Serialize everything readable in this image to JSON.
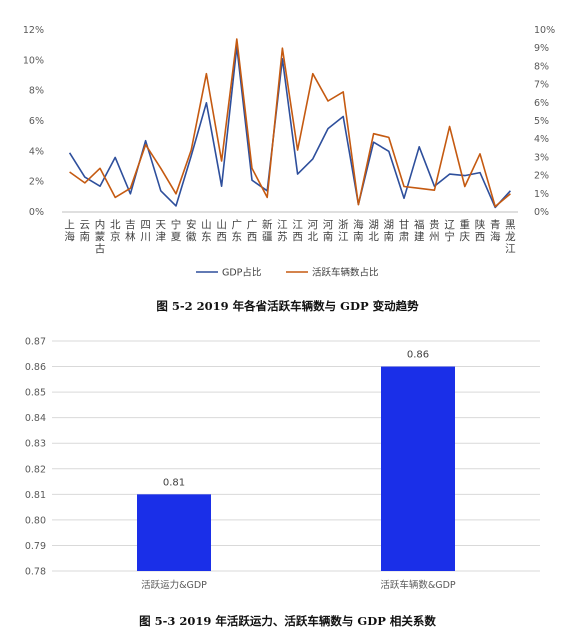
{
  "chart_data": [
    {
      "type": "line",
      "caption": "图 5-2 2019 年各省活跃车辆数与 GDP 变动趋势",
      "categories": [
        "上海",
        "云南",
        "内蒙古",
        "北京",
        "吉林",
        "四川",
        "天津",
        "宁夏",
        "安徽",
        "山东",
        "山西",
        "广东",
        "广西",
        "新疆",
        "江苏",
        "江西",
        "河北",
        "河南",
        "浙江",
        "海南",
        "湖北",
        "湖南",
        "甘肃",
        "福建",
        "贵州",
        "辽宁",
        "重庆",
        "陕西",
        "青海",
        "黑龙江"
      ],
      "series": [
        {
          "name": "GDP占比",
          "axis": "left",
          "color": "#2e4f9c",
          "values": [
            3.9,
            2.3,
            1.7,
            3.6,
            1.2,
            4.7,
            1.4,
            0.4,
            3.7,
            7.2,
            1.7,
            10.9,
            2.1,
            1.4,
            10.1,
            2.5,
            3.5,
            5.5,
            6.3,
            0.5,
            4.6,
            4.0,
            0.9,
            4.3,
            1.7,
            2.5,
            2.4,
            2.6,
            0.3,
            1.4
          ]
        },
        {
          "name": "活跃车辆数占比",
          "axis": "right",
          "color": "#c55a11",
          "values": [
            2.2,
            1.6,
            2.4,
            0.8,
            1.3,
            3.7,
            2.4,
            1.0,
            3.4,
            7.6,
            2.8,
            9.5,
            2.4,
            0.8,
            9.0,
            3.4,
            7.6,
            6.1,
            6.6,
            0.4,
            4.3,
            4.1,
            1.4,
            1.3,
            1.2,
            4.7,
            1.4,
            3.2,
            0.3,
            1.0
          ]
        }
      ],
      "y_left": {
        "ticks": [
          "0%",
          "2%",
          "4%",
          "6%",
          "8%",
          "10%",
          "12%"
        ],
        "ylim": [
          0,
          12
        ]
      },
      "y_right": {
        "ticks": [
          "0%",
          "1%",
          "2%",
          "3%",
          "4%",
          "5%",
          "6%",
          "7%",
          "8%",
          "9%",
          "10%"
        ],
        "ylim": [
          0,
          10
        ]
      },
      "grid": false,
      "legend": "bottom"
    },
    {
      "type": "bar",
      "caption": "图 5-3 2019 年活跃运力、活跃车辆数与 GDP 相关系数",
      "categories": [
        "活跃运力&GDP",
        "活跃车辆数&GDP"
      ],
      "values": [
        0.81,
        0.86
      ],
      "value_labels": [
        "0.81",
        "0.86"
      ],
      "color": "#1a2fe8",
      "ylim": [
        0.78,
        0.87
      ],
      "y_ticks": [
        "0.78",
        "0.79",
        "0.80",
        "0.81",
        "0.82",
        "0.83",
        "0.84",
        "0.85",
        "0.86",
        "0.87"
      ],
      "grid": true
    }
  ]
}
